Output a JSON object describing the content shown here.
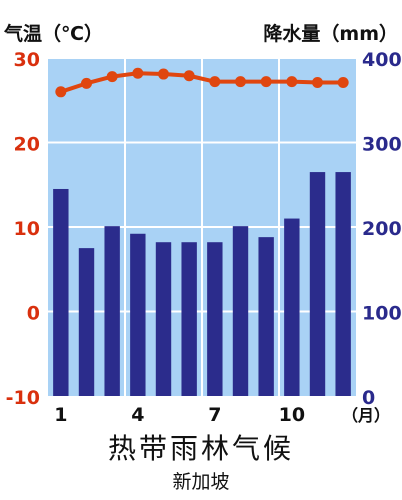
{
  "chart_data": {
    "type": "bar+line",
    "title": "热带雨林气候",
    "subtitle": "新加坡",
    "temp_axis": {
      "label": "气温（℃）",
      "ticks": [
        "30",
        "20",
        "10",
        "0",
        "-10"
      ],
      "range": [
        -10,
        30
      ]
    },
    "precip_axis": {
      "label": "降水量（mm）",
      "ticks": [
        "400",
        "300",
        "200",
        "100",
        "0"
      ],
      "range": [
        0,
        400
      ]
    },
    "x_ticks": [
      "1",
      "4",
      "7",
      "10"
    ],
    "x_unit": "（月）",
    "months": [
      1,
      2,
      3,
      4,
      5,
      6,
      7,
      8,
      9,
      10,
      11,
      12
    ],
    "temperature": [
      26,
      27,
      27.8,
      28.2,
      28.1,
      27.9,
      27.2,
      27.2,
      27.2,
      27.2,
      27.1,
      27.1
    ],
    "precipitation": [
      245,
      175,
      201,
      192,
      182,
      182,
      182,
      201,
      188,
      210,
      265,
      265
    ],
    "colors": {
      "plot_bg": "#a9d2f5",
      "bar": "#2b2c8c",
      "line": "#e0460f",
      "temp_axis": "#d9300e",
      "precip_axis": "#2a2a8c",
      "grid": "#ffffff"
    },
    "grid": true
  }
}
